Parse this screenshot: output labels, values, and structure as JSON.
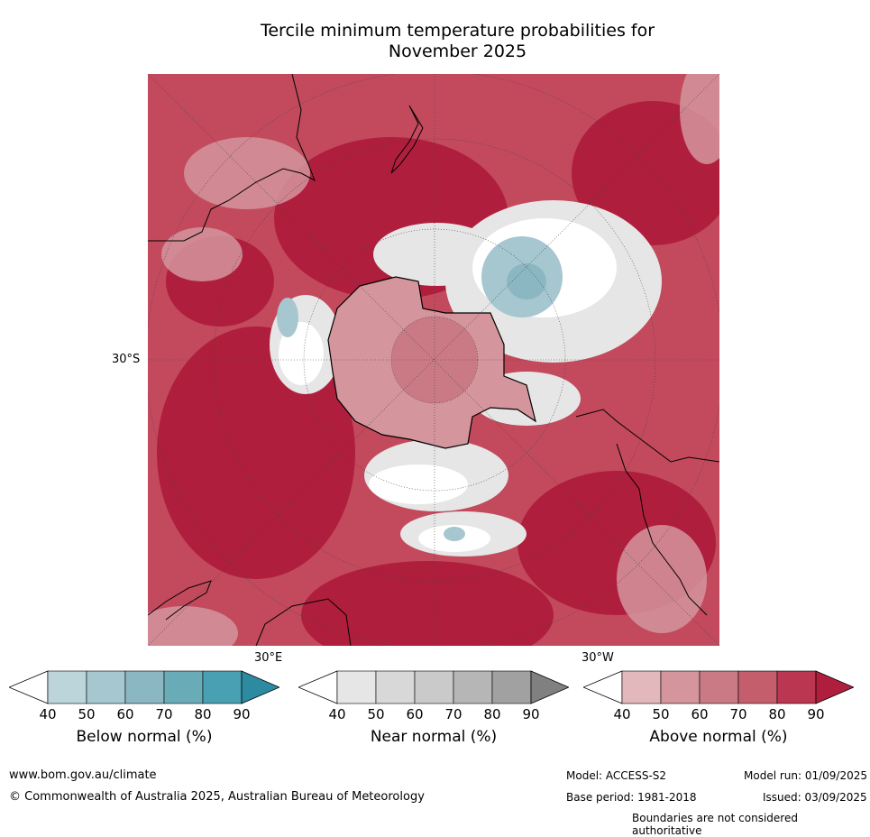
{
  "title": {
    "line1": "Tercile minimum temperature probabilities for",
    "line2": "November 2025"
  },
  "map": {
    "projection": "south polar stereographic",
    "lat_label": "30°S",
    "lon_labels": [
      "30°E",
      "30°W"
    ]
  },
  "colorbars": [
    {
      "name": "Below normal (%)",
      "ticks": [
        "40",
        "50",
        "60",
        "70",
        "80",
        "90"
      ],
      "colors": [
        "#ffffff",
        "#bcd5db",
        "#a6c7cf",
        "#8bb7c3",
        "#6aabb8",
        "#4aa0b3",
        "#2c8ba1"
      ]
    },
    {
      "name": "Near normal (%)",
      "ticks": [
        "40",
        "50",
        "60",
        "70",
        "80",
        "90"
      ],
      "colors": [
        "#ffffff",
        "#e6e6e6",
        "#d8d8d8",
        "#cacaca",
        "#b6b6b6",
        "#a1a1a1",
        "#808080"
      ]
    },
    {
      "name": "Above normal (%)",
      "ticks": [
        "40",
        "50",
        "60",
        "70",
        "80",
        "90"
      ],
      "colors": [
        "#ffffff",
        "#e2b8bd",
        "#d4959d",
        "#c97a85",
        "#c45e6d",
        "#bb3650",
        "#b01e3d"
      ]
    }
  ],
  "footer": {
    "url": "www.bom.gov.au/climate",
    "copyright": "© Commonwealth of Australia 2025, Australian Bureau of Meteorology",
    "model": "Model: ACCESS-S2",
    "model_run": "Model run: 01/09/2025",
    "base_period": "Base period: 1981-2018",
    "issued": "Issued: 03/09/2025",
    "disclaimer": "Boundaries are not considered authoritative"
  }
}
